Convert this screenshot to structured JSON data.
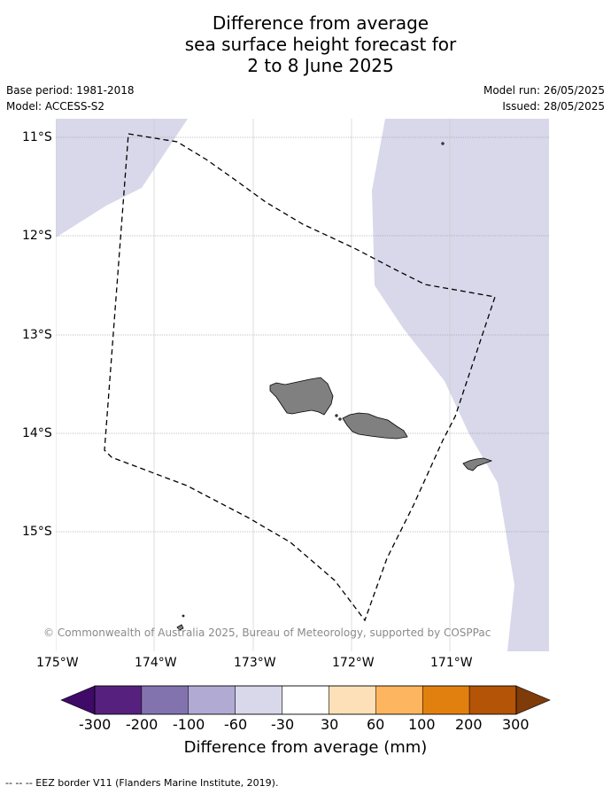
{
  "title": {
    "line1": "Difference from average",
    "line2": "sea surface height forecast for",
    "line3": "2 to 8 June 2025"
  },
  "meta": {
    "base_period": "Base period: 1981-2018",
    "model": "Model: ACCESS-S2",
    "model_run": "Model run: 26/05/2025",
    "issued": "Issued: 28/05/2025"
  },
  "map": {
    "lat_labels": [
      "11°S",
      "12°S",
      "13°S",
      "14°S",
      "15°S"
    ],
    "lon_labels": [
      "175°W",
      "174°W",
      "173°W",
      "172°W",
      "171°W"
    ],
    "credit": "© Commonwealth of Australia 2025, Bureau of Meteorology, supported by COSPPac",
    "colors": {
      "ocean": "#ffffff",
      "shade": "#d8d8ea",
      "land": "#808080",
      "eez": "#000000"
    }
  },
  "colorbar": {
    "labels": [
      "-300",
      "-200",
      "-100",
      "-60",
      "-30",
      "30",
      "60",
      "100",
      "200",
      "300"
    ],
    "colors": [
      "#3f0a68",
      "#56217e",
      "#8273ae",
      "#b1abd3",
      "#d8d8ea",
      "#ffffff",
      "#fde0b7",
      "#fdb55f",
      "#e2800f",
      "#b35406",
      "#7f3b08"
    ],
    "title": "Difference from average (mm)"
  },
  "legend": {
    "eez_label": "--  --  -- EEZ border V11 (Flanders Marine Institute, 2019)."
  }
}
